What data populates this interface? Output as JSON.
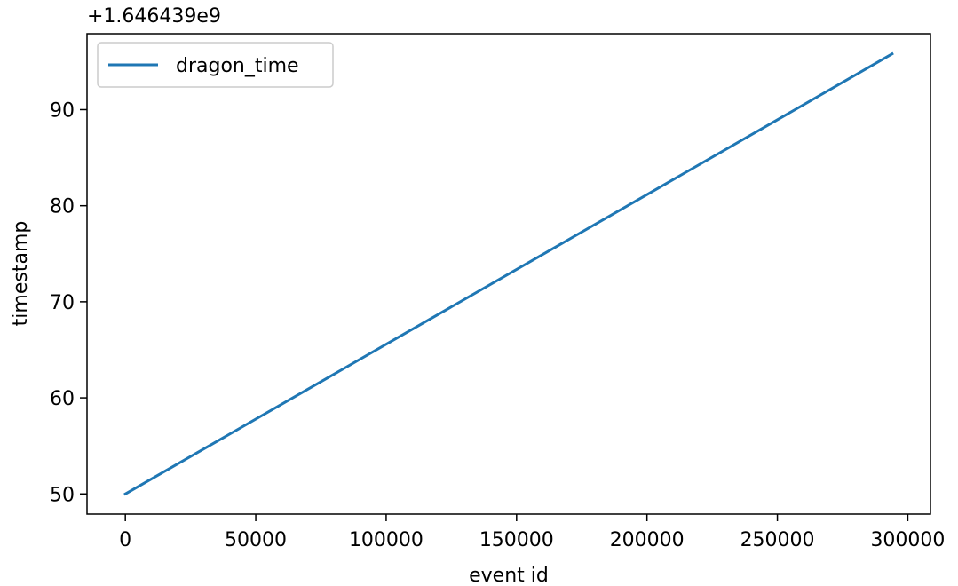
{
  "chart_data": {
    "type": "line",
    "title": "",
    "xlabel": "event id",
    "ylabel": "timestamp",
    "y_offset_text": "+1.646439e9",
    "xlim": [
      -14700,
      308700
    ],
    "ylim": [
      47.9,
      97.9
    ],
    "x_ticks": [
      0,
      50000,
      100000,
      150000,
      200000,
      250000,
      300000
    ],
    "x_tick_labels": [
      "0",
      "50000",
      "100000",
      "150000",
      "200000",
      "250000",
      "300000"
    ],
    "y_ticks": [
      50,
      60,
      70,
      80,
      90
    ],
    "y_tick_labels": [
      "50",
      "60",
      "70",
      "80",
      "90"
    ],
    "grid": false,
    "legend": {
      "position": "upper-left",
      "entries": [
        "dragon_time"
      ]
    },
    "colors": {
      "series": "#1f77b4"
    },
    "series": [
      {
        "name": "dragon_time",
        "x": [
          0,
          294000
        ],
        "y": [
          50.0,
          95.8
        ]
      }
    ]
  }
}
